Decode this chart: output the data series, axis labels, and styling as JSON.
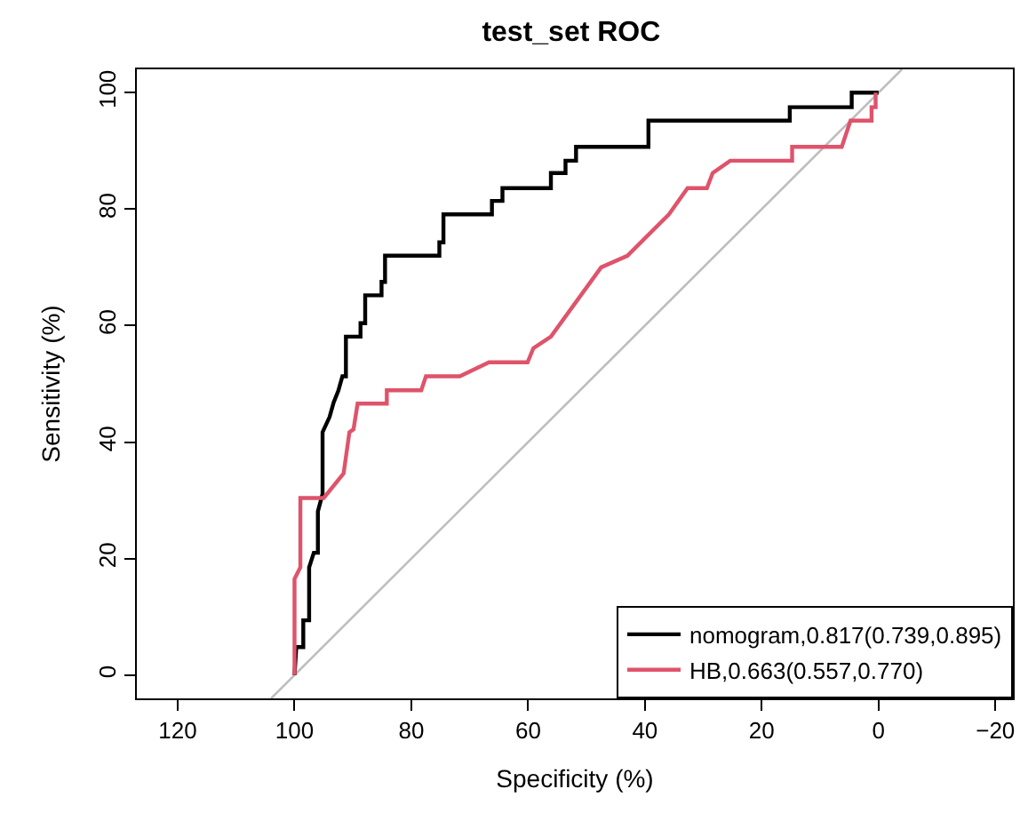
{
  "chart_data": {
    "type": "line",
    "title": "test_set ROC",
    "xlabel": "Specificity (%)",
    "ylabel": "Sensitivity (%)",
    "xlim": [
      127,
      -23
    ],
    "ylim": [
      -4,
      104
    ],
    "xticks": [
      120,
      100,
      80,
      60,
      40,
      20,
      0,
      -20
    ],
    "yticks": [
      0,
      20,
      40,
      60,
      80,
      100
    ],
    "legend": "bottom right",
    "marker": "none",
    "line_style": "solid",
    "series": [
      {
        "color": "#bebebe",
        "x": [
          104,
          -4
        ],
        "values": [
          -4,
          104
        ]
      },
      {
        "name": "nomogram,0.817(0.739,0.895)",
        "color": "#000000",
        "x": [
          100,
          99.7,
          98.5,
          98.5,
          97.5,
          97.5,
          96.7,
          96.0,
          96.0,
          95.2,
          95.2,
          94.0,
          93.3,
          92.5,
          91.8,
          91.2,
          91.2,
          88.7,
          88.7,
          87.9,
          87.9,
          85.1,
          85.1,
          84.5,
          84.5,
          75.2,
          75.2,
          74.5,
          74.5,
          66.2,
          66.2,
          64.4,
          64.4,
          56.1,
          56.1,
          53.6,
          53.6,
          51.8,
          51.8,
          39.4,
          39.4,
          15.2,
          15.2,
          4.6,
          4.6,
          0
        ],
        "values": [
          0,
          4.8,
          4.8,
          9.4,
          9.4,
          18.5,
          21.0,
          21.0,
          28.1,
          31.1,
          41.7,
          44.3,
          46.8,
          48.8,
          51.3,
          51.3,
          58.1,
          58.1,
          60.4,
          60.4,
          65.2,
          65.2,
          67.5,
          67.5,
          72.0,
          72.0,
          74.3,
          74.3,
          79.1,
          79.1,
          81.4,
          81.4,
          83.6,
          83.6,
          86.2,
          86.2,
          88.3,
          88.3,
          90.7,
          90.7,
          95.2,
          95.2,
          97.5,
          97.5,
          100,
          100
        ]
      },
      {
        "name": "HB,0.663(0.557,0.770)",
        "color": "#df536b",
        "x": [
          100,
          100,
          99.0,
          99.0,
          95.0,
          91.6,
          90.6,
          89.9,
          89.2,
          84.2,
          84.2,
          78.3,
          77.5,
          71.7,
          66.7,
          60.1,
          59.1,
          56.1,
          47.5,
          43.0,
          35.9,
          32.7,
          29.4,
          28.4,
          25.4,
          14.8,
          14.8,
          6.3,
          4.8,
          1.2,
          1.2,
          0.5,
          0.5
        ],
        "values": [
          0,
          16.5,
          18.5,
          30.4,
          30.4,
          34.6,
          41.7,
          42.2,
          46.6,
          46.6,
          48.9,
          48.9,
          51.3,
          51.3,
          53.7,
          53.7,
          56.1,
          58.1,
          70.0,
          72.0,
          79.1,
          83.6,
          83.6,
          86.2,
          88.3,
          88.3,
          90.7,
          90.7,
          95.2,
          95.2,
          97.5,
          97.5,
          100
        ]
      }
    ]
  }
}
